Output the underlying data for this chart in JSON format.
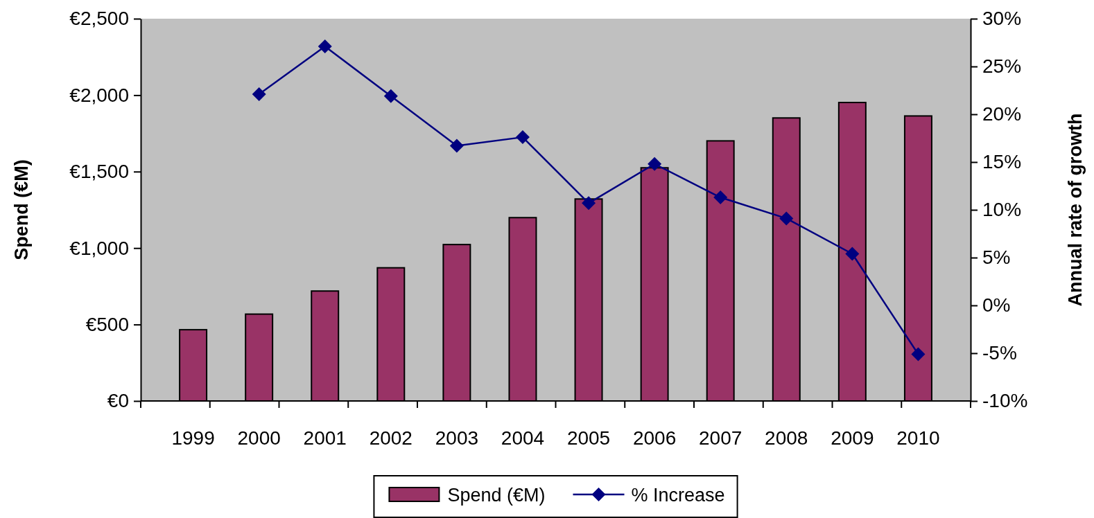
{
  "chart_data": {
    "type": "bar",
    "categories": [
      "1999",
      "2000",
      "2001",
      "2002",
      "2003",
      "2004",
      "2005",
      "2006",
      "2007",
      "2008",
      "2009",
      "2010"
    ],
    "series": [
      {
        "name": "Spend (€M)",
        "color": "#993366",
        "values": [
          466,
          568,
          719,
          871,
          1023,
          1199,
          1321,
          1525,
          1701,
          1851,
          1952,
          1864
        ]
      },
      {
        "name": "% Increase",
        "type": "line",
        "axis": "y2",
        "color": "#000080",
        "marker": "diamond",
        "values": [
          null,
          22.1,
          27.1,
          21.9,
          16.7,
          17.6,
          10.7,
          14.8,
          11.3,
          9.1,
          5.4,
          -5.1
        ]
      }
    ],
    "ylabel": "Spend (€M)",
    "y2label": "Annual rate of growth",
    "ylim": [
      0,
      2500
    ],
    "yticks": [
      {
        "value": 0,
        "label": "€0"
      },
      {
        "value": 500,
        "label": "€500"
      },
      {
        "value": 1000,
        "label": "€1,000"
      },
      {
        "value": 1500,
        "label": "€1,500"
      },
      {
        "value": 2000,
        "label": "€2,000"
      },
      {
        "value": 2500,
        "label": "€2,500"
      }
    ],
    "y2lim": [
      -10,
      30
    ],
    "y2ticks": [
      {
        "value": -10,
        "label": "-10%"
      },
      {
        "value": -5,
        "label": "-5%"
      },
      {
        "value": 0,
        "label": "0%"
      },
      {
        "value": 5,
        "label": "5%"
      },
      {
        "value": 10,
        "label": "10%"
      },
      {
        "value": 15,
        "label": "15%"
      },
      {
        "value": 20,
        "label": "20%"
      },
      {
        "value": 25,
        "label": "25%"
      },
      {
        "value": 30,
        "label": "30%"
      }
    ],
    "grid": false,
    "legend": "bottom"
  }
}
